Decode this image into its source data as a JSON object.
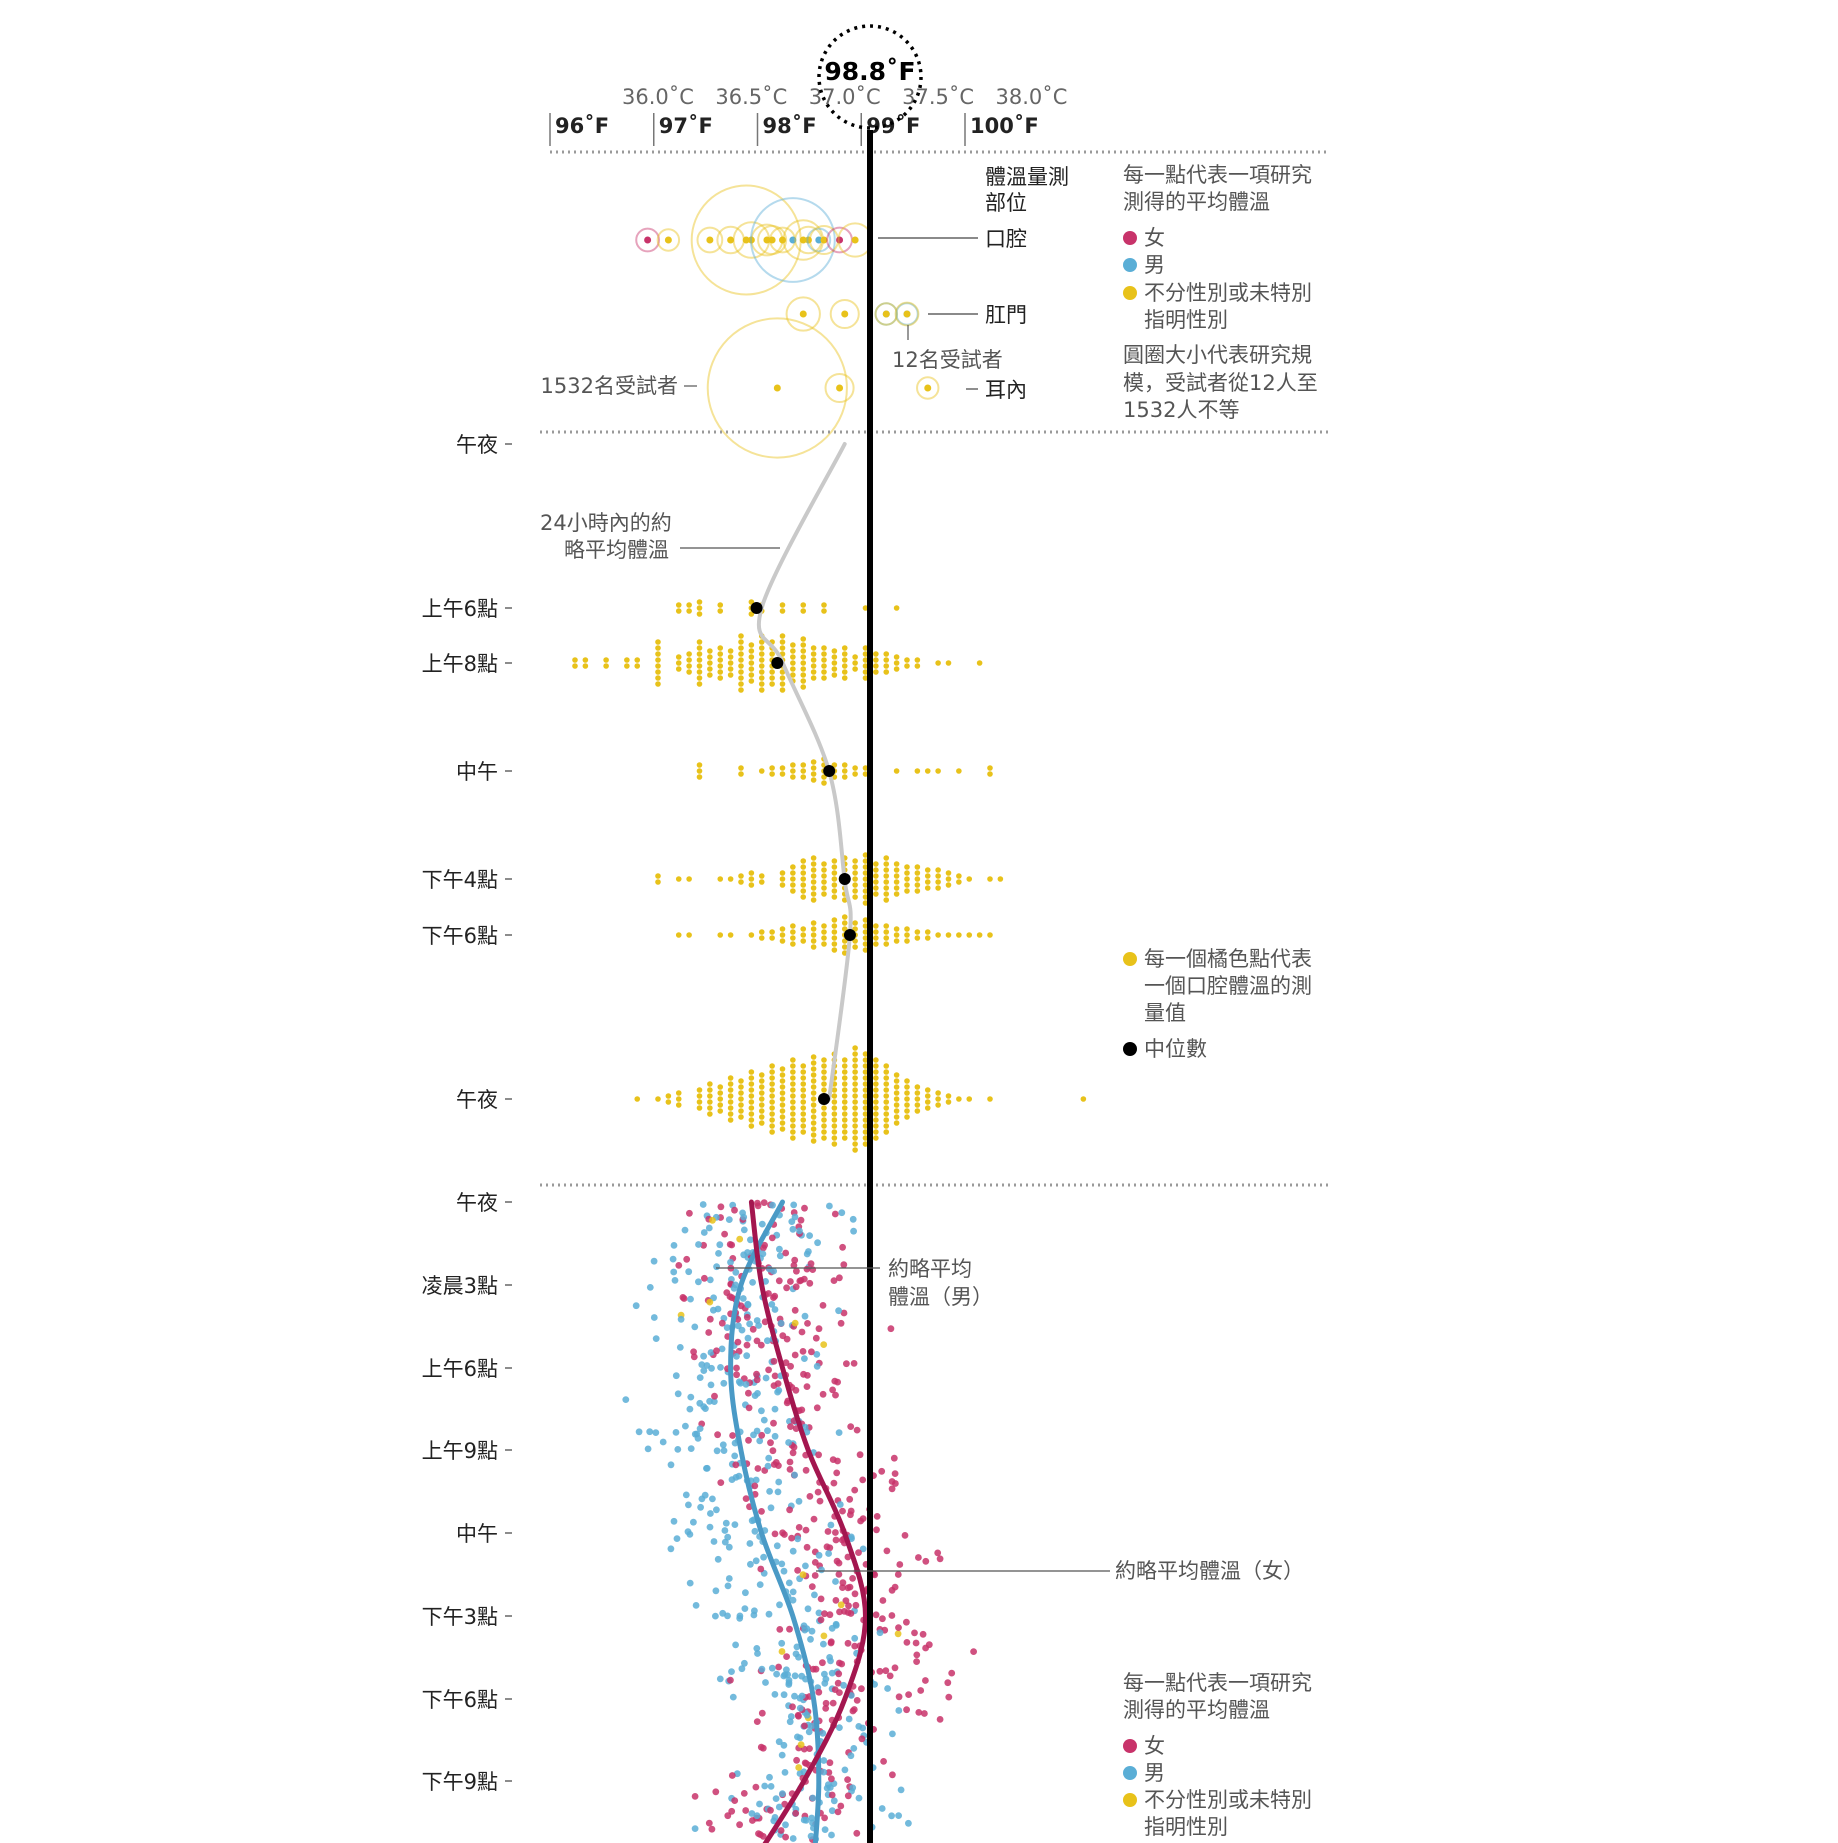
{
  "header": {
    "highlight_label": "98.8˚F"
  },
  "colors": {
    "female": "#c8336a",
    "male": "#5aaed6",
    "unspecified": "#e8c21a",
    "median": "#000000",
    "female_curve": "#a3164f",
    "male_curve": "#4a9ac6",
    "avg_curve": "#c9c9c9",
    "guide": "#000000",
    "separator": "#9a9a9a"
  },
  "axis": {
    "celsius_ticks": [
      {
        "value": 36.0,
        "label": "36.0˚C"
      },
      {
        "value": 36.5,
        "label": "36.5˚C"
      },
      {
        "value": 37.0,
        "label": "37.0˚C"
      },
      {
        "value": 37.5,
        "label": "37.5˚C"
      },
      {
        "value": 38.0,
        "label": "38.0˚C"
      }
    ],
    "fahrenheit_ticks": [
      {
        "value": 96,
        "label": "96˚F"
      },
      {
        "value": 97,
        "label": "97˚F"
      },
      {
        "value": 98,
        "label": "98˚F"
      },
      {
        "value": 99,
        "label": "99˚F"
      },
      {
        "value": 100,
        "label": "100˚F"
      }
    ],
    "reference_value_f": 98.8,
    "xlim_f": [
      96,
      100.4
    ]
  },
  "panel1": {
    "site_heading_1": "體溫量測",
    "site_heading_2": "部位",
    "sites": [
      {
        "key": "oral",
        "label": "口腔"
      },
      {
        "key": "rectal",
        "label": "肛門"
      },
      {
        "key": "ear",
        "label": "耳內"
      }
    ],
    "annotation_large": "1532名受試者",
    "annotation_small": "12名受試者",
    "legend_title_1": "每一點代表一項研究",
    "legend_title_2": "測得的平均體溫",
    "legend_female": "女",
    "legend_male": "男",
    "legend_unspec_1": "不分性別或未特別",
    "legend_unspec_2": "指明性別",
    "size_note_1": "圓圈大小代表研究規",
    "size_note_2": "模，受試者從12人至",
    "size_note_3": "1532人不等"
  },
  "panel2": {
    "avg_label_1": "24小時內的約",
    "avg_label_2": "略平均體溫",
    "legend_dot_1": "每一個橘色點代表",
    "legend_dot_2": "一個口腔體溫的測",
    "legend_dot_3": "量值",
    "legend_median": "中位數",
    "time_labels": [
      "午夜",
      "上午6點",
      "上午8點",
      "中午",
      "下午4點",
      "下午6點",
      "午夜"
    ]
  },
  "panel3": {
    "male_avg_1": "約略平均",
    "male_avg_2": "體溫（男）",
    "female_avg": "約略平均體溫（女）",
    "time_labels": [
      "午夜",
      "凌晨3點",
      "上午6點",
      "上午9點",
      "中午",
      "下午3點",
      "下午6點",
      "下午9點"
    ],
    "legend_title_1": "每一點代表一項研究",
    "legend_title_2": "測得的平均體溫",
    "legend_female": "女",
    "legend_male": "男",
    "legend_unspec_1": "不分性別或未特別",
    "legend_unspec_2": "指明性別"
  },
  "chart_data": [
    {
      "type": "scatter",
      "xlabel": "",
      "x_units": "°F",
      "xlim": [
        96,
        100.4
      ],
      "reference_line": 98.8,
      "studies": [
        {
          "site": "口腔",
          "sex": "female",
          "x": 96.7,
          "n": 15
        },
        {
          "site": "口腔",
          "sex": "unspecified",
          "x": 96.9,
          "n": 12
        },
        {
          "site": "口腔",
          "sex": "unspecified",
          "x": 97.3,
          "n": 20
        },
        {
          "site": "口腔",
          "sex": "unspecified",
          "x": 97.5,
          "n": 25
        },
        {
          "site": "口腔",
          "sex": "unspecified",
          "x": 97.65,
          "n": 900
        },
        {
          "site": "口腔",
          "sex": "unspecified",
          "x": 97.7,
          "n": 60
        },
        {
          "site": "口腔",
          "sex": "unspecified",
          "x": 97.85,
          "n": 40
        },
        {
          "site": "口腔",
          "sex": "unspecified",
          "x": 97.9,
          "n": 30
        },
        {
          "site": "口腔",
          "sex": "unspecified",
          "x": 98.0,
          "n": 20
        },
        {
          "site": "口腔",
          "sex": "male",
          "x": 98.1,
          "n": 500
        },
        {
          "site": "口腔",
          "sex": "unspecified",
          "x": 98.2,
          "n": 80
        },
        {
          "site": "口腔",
          "sex": "unspecified",
          "x": 98.25,
          "n": 25
        },
        {
          "site": "口腔",
          "sex": "male",
          "x": 98.35,
          "n": 15
        },
        {
          "site": "口腔",
          "sex": "unspecified",
          "x": 98.4,
          "n": 30
        },
        {
          "site": "口腔",
          "sex": "female",
          "x": 98.55,
          "n": 20
        },
        {
          "site": "口腔",
          "sex": "unspecified",
          "x": 98.7,
          "n": 50
        },
        {
          "site": "肛門",
          "sex": "unspecified",
          "x": 98.2,
          "n": 50
        },
        {
          "site": "肛門",
          "sex": "unspecified",
          "x": 98.6,
          "n": 30
        },
        {
          "site": "肛門",
          "sex": "male",
          "x": 99.0,
          "n": 12
        },
        {
          "site": "肛門",
          "sex": "unspecified",
          "x": 99.0,
          "n": 12
        },
        {
          "site": "肛門",
          "sex": "male",
          "x": 99.2,
          "n": 12
        },
        {
          "site": "肛門",
          "sex": "unspecified",
          "x": 99.2,
          "n": 15
        },
        {
          "site": "耳內",
          "sex": "unspecified",
          "x": 97.95,
          "n": 1532
        },
        {
          "site": "耳內",
          "sex": "unspecified",
          "x": 98.55,
          "n": 30
        },
        {
          "site": "耳內",
          "sex": "unspecified",
          "x": 99.4,
          "n": 12
        }
      ]
    },
    {
      "type": "scatter",
      "x_units": "°F",
      "rows": [
        {
          "time": "上午6點",
          "median": 97.75,
          "counts": [
            [
              97.0,
              2
            ],
            [
              97.1,
              2
            ],
            [
              97.2,
              3
            ],
            [
              97.4,
              2
            ],
            [
              97.7,
              3
            ],
            [
              97.8,
              2
            ],
            [
              98.0,
              2
            ],
            [
              98.2,
              2
            ],
            [
              98.4,
              2
            ],
            [
              98.8,
              1
            ],
            [
              99.1,
              1
            ]
          ]
        },
        {
          "time": "上午8點",
          "median": 97.95,
          "counts": [
            [
              96.0,
              2
            ],
            [
              96.1,
              2
            ],
            [
              96.3,
              2
            ],
            [
              96.5,
              2
            ],
            [
              96.6,
              2
            ],
            [
              96.8,
              8
            ],
            [
              97.0,
              3
            ],
            [
              97.1,
              4
            ],
            [
              97.2,
              8
            ],
            [
              97.3,
              5
            ],
            [
              97.4,
              6
            ],
            [
              97.5,
              5
            ],
            [
              97.6,
              10
            ],
            [
              97.7,
              7
            ],
            [
              97.8,
              10
            ],
            [
              97.9,
              8
            ],
            [
              98.0,
              10
            ],
            [
              98.1,
              7
            ],
            [
              98.2,
              9
            ],
            [
              98.3,
              6
            ],
            [
              98.4,
              6
            ],
            [
              98.5,
              5
            ],
            [
              98.6,
              6
            ],
            [
              98.7,
              3
            ],
            [
              98.8,
              6
            ],
            [
              98.9,
              4
            ],
            [
              99.0,
              4
            ],
            [
              99.1,
              3
            ],
            [
              99.2,
              2
            ],
            [
              99.3,
              2
            ],
            [
              99.5,
              1
            ],
            [
              99.6,
              1
            ],
            [
              99.9,
              1
            ]
          ]
        },
        {
          "time": "中午",
          "median": 98.45,
          "counts": [
            [
              97.2,
              3
            ],
            [
              97.6,
              2
            ],
            [
              97.8,
              1
            ],
            [
              97.9,
              2
            ],
            [
              98.0,
              2
            ],
            [
              98.1,
              3
            ],
            [
              98.2,
              3
            ],
            [
              98.3,
              4
            ],
            [
              98.4,
              5
            ],
            [
              98.5,
              3
            ],
            [
              98.6,
              3
            ],
            [
              98.7,
              2
            ],
            [
              98.8,
              2
            ],
            [
              99.1,
              1
            ],
            [
              99.3,
              1
            ],
            [
              99.4,
              1
            ],
            [
              99.5,
              1
            ],
            [
              99.7,
              1
            ],
            [
              100.0,
              2
            ]
          ]
        },
        {
          "time": "下午4點",
          "median": 98.6,
          "counts": [
            [
              96.8,
              2
            ],
            [
              97.0,
              1
            ],
            [
              97.1,
              1
            ],
            [
              97.4,
              1
            ],
            [
              97.5,
              1
            ],
            [
              97.6,
              2
            ],
            [
              97.7,
              3
            ],
            [
              97.8,
              2
            ],
            [
              98.0,
              3
            ],
            [
              98.1,
              5
            ],
            [
              98.2,
              7
            ],
            [
              98.3,
              8
            ],
            [
              98.4,
              6
            ],
            [
              98.5,
              7
            ],
            [
              98.6,
              8
            ],
            [
              98.7,
              7
            ],
            [
              98.8,
              9
            ],
            [
              98.9,
              6
            ],
            [
              99.0,
              8
            ],
            [
              99.1,
              6
            ],
            [
              99.2,
              5
            ],
            [
              99.3,
              5
            ],
            [
              99.4,
              4
            ],
            [
              99.5,
              4
            ],
            [
              99.6,
              3
            ],
            [
              99.7,
              2
            ],
            [
              99.8,
              1
            ],
            [
              100.0,
              1
            ],
            [
              100.1,
              1
            ]
          ]
        },
        {
          "time": "下午6點",
          "median": 98.65,
          "counts": [
            [
              97.0,
              1
            ],
            [
              97.1,
              1
            ],
            [
              97.4,
              1
            ],
            [
              97.5,
              1
            ],
            [
              97.7,
              1
            ],
            [
              97.8,
              2
            ],
            [
              97.9,
              2
            ],
            [
              98.0,
              3
            ],
            [
              98.1,
              4
            ],
            [
              98.2,
              3
            ],
            [
              98.3,
              5
            ],
            [
              98.4,
              4
            ],
            [
              98.5,
              6
            ],
            [
              98.6,
              7
            ],
            [
              98.7,
              5
            ],
            [
              98.8,
              6
            ],
            [
              98.9,
              4
            ],
            [
              99.0,
              4
            ],
            [
              99.1,
              3
            ],
            [
              99.2,
              3
            ],
            [
              99.3,
              2
            ],
            [
              99.4,
              2
            ],
            [
              99.5,
              1
            ],
            [
              99.6,
              1
            ],
            [
              99.7,
              1
            ],
            [
              99.8,
              1
            ],
            [
              99.9,
              1
            ],
            [
              100.0,
              1
            ]
          ]
        },
        {
          "time": "午夜",
          "median": 98.4,
          "counts": [
            [
              96.6,
              1
            ],
            [
              96.8,
              1
            ],
            [
              96.9,
              2
            ],
            [
              97.0,
              3
            ],
            [
              97.2,
              4
            ],
            [
              97.3,
              6
            ],
            [
              97.4,
              5
            ],
            [
              97.5,
              8
            ],
            [
              97.6,
              7
            ],
            [
              97.7,
              10
            ],
            [
              97.8,
              9
            ],
            [
              97.9,
              12
            ],
            [
              98.0,
              11
            ],
            [
              98.1,
              14
            ],
            [
              98.2,
              12
            ],
            [
              98.3,
              15
            ],
            [
              98.4,
              14
            ],
            [
              98.5,
              16
            ],
            [
              98.6,
              14
            ],
            [
              98.7,
              18
            ],
            [
              98.8,
              16
            ],
            [
              98.9,
              14
            ],
            [
              99.0,
              12
            ],
            [
              99.1,
              9
            ],
            [
              99.2,
              7
            ],
            [
              99.3,
              5
            ],
            [
              99.4,
              4
            ],
            [
              99.5,
              3
            ],
            [
              99.6,
              2
            ],
            [
              99.7,
              1
            ],
            [
              99.8,
              1
            ],
            [
              100.0,
              1
            ],
            [
              100.9,
              1
            ]
          ]
        }
      ],
      "average_curve": [
        [
          0,
          98.6
        ],
        [
          6,
          97.8
        ],
        [
          8,
          98.0
        ],
        [
          12,
          98.45
        ],
        [
          16,
          98.6
        ],
        [
          18,
          98.65
        ],
        [
          24,
          98.45
        ]
      ]
    },
    {
      "type": "scatter",
      "x_units": "°F",
      "series": [
        {
          "name": "約略平均體溫（男）",
          "curve": [
            [
              0,
              98.0
            ],
            [
              3,
              97.6
            ],
            [
              6,
              97.5
            ],
            [
              9,
              97.6
            ],
            [
              12,
              97.8
            ],
            [
              15,
              98.1
            ],
            [
              18,
              98.3
            ],
            [
              21,
              98.35
            ],
            [
              24,
              98.3
            ]
          ]
        },
        {
          "name": "約略平均體溫（女）",
          "curve": [
            [
              0,
              97.7
            ],
            [
              3,
              97.8
            ],
            [
              6,
              98.0
            ],
            [
              9,
              98.25
            ],
            [
              12,
              98.6
            ],
            [
              15,
              98.8
            ],
            [
              18,
              98.6
            ],
            [
              21,
              98.2
            ],
            [
              24,
              97.7
            ]
          ]
        }
      ]
    }
  ]
}
